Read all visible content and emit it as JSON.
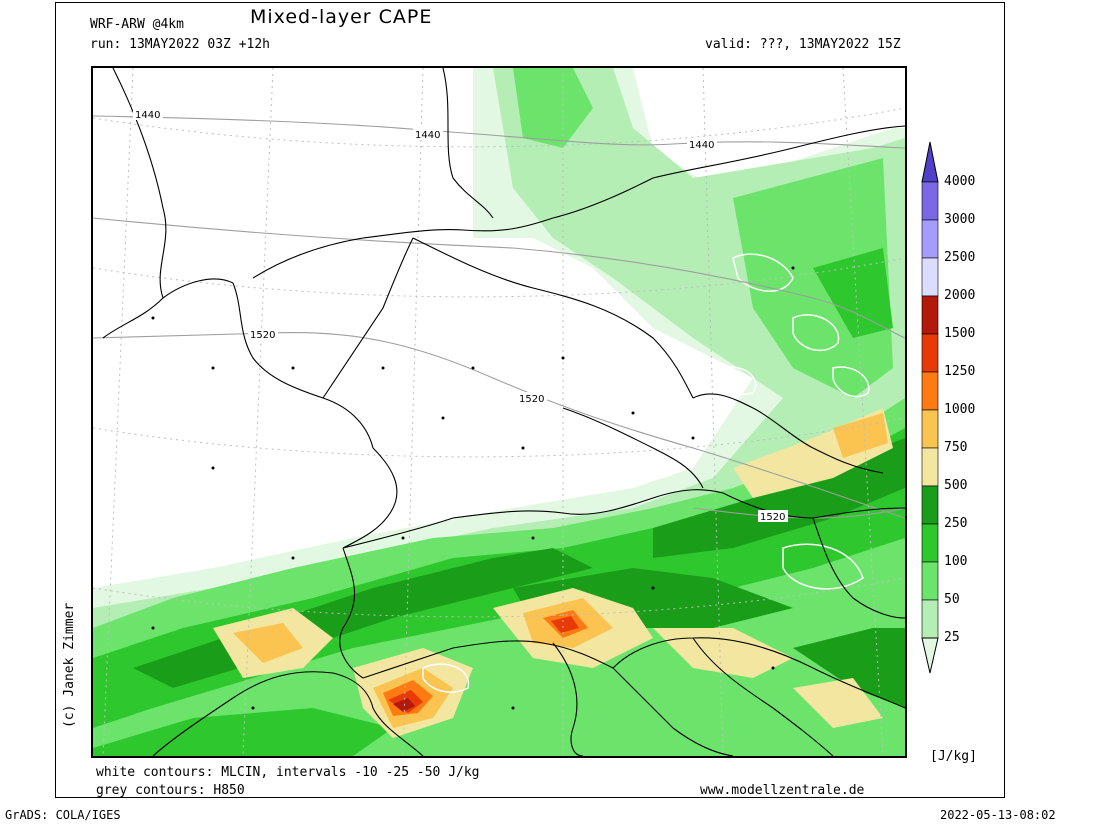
{
  "header": {
    "model": "WRF-ARW @4km",
    "title": "Mixed-layer CAPE",
    "run": "run: 13MAY2022 03Z +12h",
    "valid": "valid: ???, 13MAY2022 15Z"
  },
  "map": {
    "region": "Central Europe",
    "grey_contour_labels": [
      "1440",
      "1440",
      "1440",
      "1520",
      "1520",
      "1520"
    ]
  },
  "colorbar": {
    "unit": "[J/kg]",
    "levels": [
      "25",
      "50",
      "100",
      "250",
      "500",
      "750",
      "1000",
      "1250",
      "1500",
      "2000",
      "2500",
      "3000",
      "4000"
    ],
    "colors": [
      "#e2f8e2",
      "#b4eeb4",
      "#6ce46c",
      "#2ec82e",
      "#1a9e1a",
      "#f2e6a0",
      "#fbc34f",
      "#ff7a12",
      "#e83a06",
      "#b2190a",
      "#dcdcff",
      "#a69cff",
      "#7a68e6",
      "#5040c8"
    ]
  },
  "footer": {
    "white_contours": "white contours: MLCIN, intervals -10 -25 -50 J/kg",
    "grey_contours": "grey contours: H850",
    "website": "www.modellzentrale.de",
    "credit": "(c) Janek Zimmer",
    "software": "GrADS: COLA/IGES",
    "timestamp": "2022-05-13-08:02"
  }
}
